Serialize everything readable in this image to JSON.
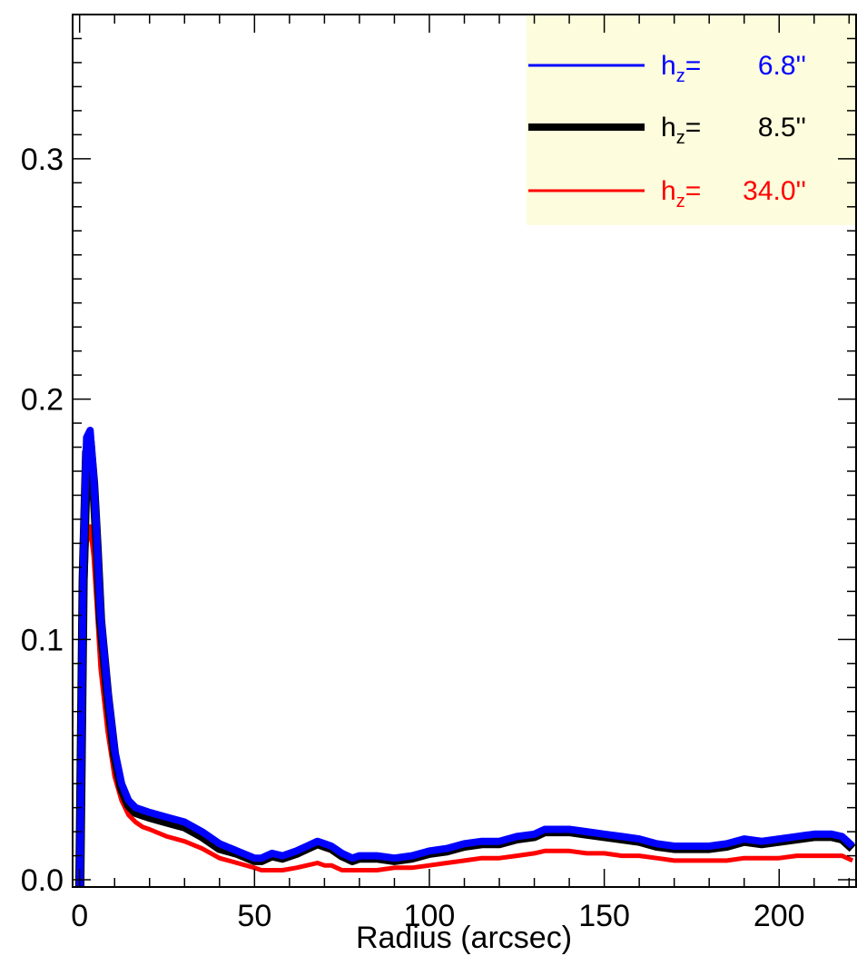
{
  "chart_data": {
    "type": "line",
    "title": "",
    "xlabel": "Radius (arcsec)",
    "ylabel": "",
    "xlim": [
      -2,
      222
    ],
    "ylim": [
      -0.003,
      0.36
    ],
    "x_ticks": [
      0,
      50,
      100,
      150,
      200
    ],
    "x_tick_labels": [
      "0",
      "50",
      "100",
      "150",
      "200"
    ],
    "y_ticks": [
      0.0,
      0.1,
      0.2,
      0.3
    ],
    "y_tick_labels": [
      "0.0",
      "0.1",
      "0.2",
      "0.3"
    ],
    "grid": false,
    "legend": {
      "placement": "top-right",
      "background": "#fdfcdc",
      "entries": [
        {
          "prefix": "h",
          "sub": "z",
          "value": "6.8''",
          "color": "#0000ff"
        },
        {
          "prefix": "h",
          "sub": "z",
          "value": "8.5''",
          "color": "#000000"
        },
        {
          "prefix": "h",
          "sub": "z",
          "value": "34.0''",
          "color": "#ff0000"
        }
      ]
    },
    "series": [
      {
        "label_ref": 0,
        "color": "#0000ff",
        "x": [
          0,
          1,
          2,
          3,
          4,
          5,
          6,
          8,
          10,
          12,
          14,
          16,
          18,
          20,
          25,
          30,
          35,
          40,
          45,
          50,
          52,
          55,
          58,
          62,
          65,
          68,
          70,
          72,
          75,
          78,
          80,
          85,
          90,
          95,
          100,
          105,
          110,
          115,
          120,
          125,
          130,
          133,
          136,
          140,
          145,
          150,
          155,
          160,
          165,
          170,
          175,
          180,
          185,
          190,
          195,
          200,
          205,
          210,
          215,
          218,
          221
        ],
        "y": [
          -0.01,
          0.128,
          0.184,
          0.187,
          0.168,
          0.14,
          0.11,
          0.079,
          0.054,
          0.04,
          0.033,
          0.03,
          0.029,
          0.028,
          0.026,
          0.024,
          0.02,
          0.015,
          0.012,
          0.009,
          0.009,
          0.011,
          0.01,
          0.012,
          0.014,
          0.016,
          0.015,
          0.014,
          0.011,
          0.009,
          0.01,
          0.01,
          0.009,
          0.01,
          0.012,
          0.013,
          0.015,
          0.016,
          0.016,
          0.018,
          0.019,
          0.021,
          0.021,
          0.021,
          0.02,
          0.019,
          0.018,
          0.017,
          0.015,
          0.014,
          0.014,
          0.014,
          0.015,
          0.017,
          0.016,
          0.017,
          0.018,
          0.019,
          0.019,
          0.018,
          0.014
        ]
      },
      {
        "label_ref": 1,
        "color": "#000000",
        "x": [
          0,
          1,
          2,
          3,
          4,
          5,
          6,
          8,
          10,
          12,
          14,
          16,
          18,
          20,
          25,
          30,
          35,
          40,
          45,
          50,
          52,
          55,
          58,
          62,
          65,
          68,
          70,
          72,
          75,
          78,
          80,
          85,
          90,
          95,
          100,
          105,
          110,
          115,
          120,
          125,
          130,
          133,
          136,
          140,
          145,
          150,
          155,
          160,
          165,
          170,
          175,
          180,
          185,
          190,
          195,
          200,
          205,
          210,
          215,
          218,
          221
        ],
        "y": [
          -0.01,
          0.125,
          0.178,
          0.182,
          0.165,
          0.138,
          0.108,
          0.077,
          0.052,
          0.038,
          0.031,
          0.028,
          0.027,
          0.026,
          0.024,
          0.022,
          0.018,
          0.013,
          0.011,
          0.008,
          0.008,
          0.01,
          0.009,
          0.011,
          0.013,
          0.015,
          0.014,
          0.013,
          0.01,
          0.008,
          0.009,
          0.009,
          0.008,
          0.009,
          0.011,
          0.012,
          0.014,
          0.015,
          0.015,
          0.017,
          0.018,
          0.02,
          0.02,
          0.02,
          0.019,
          0.018,
          0.017,
          0.016,
          0.014,
          0.013,
          0.013,
          0.013,
          0.014,
          0.016,
          0.015,
          0.016,
          0.017,
          0.018,
          0.018,
          0.017,
          0.013
        ]
      },
      {
        "label_ref": 2,
        "color": "#ff0000",
        "x": [
          0,
          1,
          2,
          3,
          4,
          5,
          6,
          8,
          10,
          12,
          14,
          16,
          18,
          20,
          25,
          30,
          35,
          40,
          45,
          50,
          52,
          55,
          58,
          62,
          65,
          68,
          70,
          72,
          75,
          78,
          80,
          85,
          90,
          95,
          100,
          105,
          110,
          115,
          120,
          125,
          130,
          133,
          136,
          140,
          145,
          150,
          155,
          160,
          165,
          170,
          175,
          180,
          185,
          190,
          195,
          200,
          205,
          210,
          215,
          218,
          221
        ],
        "y": [
          -0.01,
          0.1,
          0.14,
          0.147,
          0.135,
          0.112,
          0.088,
          0.062,
          0.043,
          0.033,
          0.027,
          0.024,
          0.022,
          0.021,
          0.018,
          0.016,
          0.013,
          0.009,
          0.007,
          0.005,
          0.004,
          0.004,
          0.004,
          0.005,
          0.006,
          0.007,
          0.006,
          0.006,
          0.004,
          0.004,
          0.004,
          0.004,
          0.005,
          0.005,
          0.006,
          0.007,
          0.008,
          0.009,
          0.009,
          0.01,
          0.011,
          0.012,
          0.012,
          0.012,
          0.011,
          0.011,
          0.01,
          0.01,
          0.009,
          0.008,
          0.008,
          0.008,
          0.008,
          0.009,
          0.009,
          0.009,
          0.01,
          0.01,
          0.01,
          0.01,
          0.008
        ]
      }
    ]
  }
}
